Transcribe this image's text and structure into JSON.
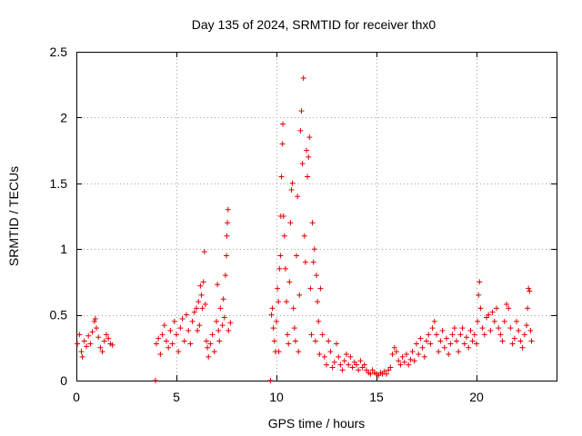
{
  "chart_data": {
    "type": "scatter",
    "title": "Day 135 of 2024, SRMTID for receiver thx0",
    "xlabel": "GPS time / hours",
    "ylabel": "SRMTID / TECUs",
    "xlim": [
      0,
      24
    ],
    "ylim": [
      0,
      2.5
    ],
    "x_ticks": [
      0,
      5,
      10,
      15,
      20
    ],
    "x_tick_labels": [
      "0",
      "5",
      "10",
      "15",
      "20"
    ],
    "y_ticks": [
      0,
      0.5,
      1,
      1.5,
      2,
      2.5
    ],
    "y_tick_labels": [
      "0",
      "0.5",
      "1",
      "1.5",
      "2",
      "2.5"
    ],
    "grid": true,
    "marker": "+",
    "series": [
      {
        "name": "SRMTID",
        "color": "#e00000",
        "points": [
          [
            0.05,
            0.28
          ],
          [
            0.15,
            0.35
          ],
          [
            0.25,
            0.22
          ],
          [
            0.3,
            0.18
          ],
          [
            0.4,
            0.3
          ],
          [
            0.5,
            0.26
          ],
          [
            0.6,
            0.34
          ],
          [
            0.7,
            0.28
          ],
          [
            0.8,
            0.37
          ],
          [
            0.9,
            0.45
          ],
          [
            0.95,
            0.47
          ],
          [
            1.0,
            0.4
          ],
          [
            1.1,
            0.33
          ],
          [
            1.2,
            0.25
          ],
          [
            1.3,
            0.22
          ],
          [
            1.4,
            0.3
          ],
          [
            1.5,
            0.35
          ],
          [
            1.6,
            0.32
          ],
          [
            1.7,
            0.28
          ],
          [
            1.8,
            0.27
          ],
          [
            3.95,
            0.0
          ],
          [
            4.0,
            0.28
          ],
          [
            4.1,
            0.32
          ],
          [
            4.2,
            0.2
          ],
          [
            4.3,
            0.35
          ],
          [
            4.4,
            0.42
          ],
          [
            4.5,
            0.3
          ],
          [
            4.6,
            0.25
          ],
          [
            4.7,
            0.38
          ],
          [
            4.8,
            0.28
          ],
          [
            4.9,
            0.45
          ],
          [
            5.0,
            0.35
          ],
          [
            5.1,
            0.22
          ],
          [
            5.2,
            0.4
          ],
          [
            5.3,
            0.47
          ],
          [
            5.4,
            0.3
          ],
          [
            5.5,
            0.5
          ],
          [
            5.6,
            0.38
          ],
          [
            5.7,
            0.28
          ],
          [
            5.8,
            0.45
          ],
          [
            5.9,
            0.52
          ],
          [
            6.0,
            0.55
          ],
          [
            6.05,
            0.38
          ],
          [
            6.1,
            0.6
          ],
          [
            6.15,
            0.42
          ],
          [
            6.2,
            0.72
          ],
          [
            6.25,
            0.65
          ],
          [
            6.3,
            0.55
          ],
          [
            6.35,
            0.75
          ],
          [
            6.4,
            0.98
          ],
          [
            6.45,
            0.58
          ],
          [
            6.5,
            0.3
          ],
          [
            6.55,
            0.25
          ],
          [
            6.6,
            0.18
          ],
          [
            6.7,
            0.28
          ],
          [
            6.8,
            0.35
          ],
          [
            6.9,
            0.22
          ],
          [
            7.0,
            0.45
          ],
          [
            7.05,
            0.73
          ],
          [
            7.1,
            0.38
          ],
          [
            7.15,
            0.3
          ],
          [
            7.2,
            0.55
          ],
          [
            7.3,
            0.42
          ],
          [
            7.35,
            0.62
          ],
          [
            7.4,
            0.48
          ],
          [
            7.45,
            0.8
          ],
          [
            7.5,
            0.95
          ],
          [
            7.52,
            1.1
          ],
          [
            7.55,
            1.2
          ],
          [
            7.58,
            1.3
          ],
          [
            7.6,
            0.38
          ],
          [
            7.7,
            0.44
          ],
          [
            9.7,
            0.0
          ],
          [
            9.75,
            0.5
          ],
          [
            9.8,
            0.55
          ],
          [
            9.85,
            0.4
          ],
          [
            9.9,
            0.3
          ],
          [
            9.95,
            0.22
          ],
          [
            10.0,
            0.45
          ],
          [
            10.05,
            0.7
          ],
          [
            10.1,
            0.6
          ],
          [
            10.12,
            0.22
          ],
          [
            10.15,
            0.85
          ],
          [
            10.2,
            0.95
          ],
          [
            10.22,
            1.25
          ],
          [
            10.25,
            1.55
          ],
          [
            10.3,
            1.8
          ],
          [
            10.32,
            1.95
          ],
          [
            10.35,
            1.25
          ],
          [
            10.4,
            1.1
          ],
          [
            10.45,
            0.85
          ],
          [
            10.5,
            0.6
          ],
          [
            10.55,
            0.35
          ],
          [
            10.6,
            0.28
          ],
          [
            10.65,
            0.75
          ],
          [
            10.7,
            1.2
          ],
          [
            10.75,
            1.45
          ],
          [
            10.8,
            1.5
          ],
          [
            10.85,
            0.55
          ],
          [
            10.9,
            0.4
          ],
          [
            10.95,
            0.3
          ],
          [
            11.0,
            0.95
          ],
          [
            11.05,
            1.4
          ],
          [
            11.1,
            0.22
          ],
          [
            11.15,
            0.65
          ],
          [
            11.2,
            1.9
          ],
          [
            11.25,
            2.05
          ],
          [
            11.3,
            1.65
          ],
          [
            11.35,
            2.3
          ],
          [
            11.4,
            1.1
          ],
          [
            11.45,
            0.9
          ],
          [
            11.5,
            1.75
          ],
          [
            11.55,
            1.55
          ],
          [
            11.6,
            1.7
          ],
          [
            11.65,
            1.85
          ],
          [
            11.7,
            0.7
          ],
          [
            11.75,
            0.35
          ],
          [
            11.8,
            1.2
          ],
          [
            11.85,
            0.9
          ],
          [
            11.9,
            1.0
          ],
          [
            11.95,
            0.3
          ],
          [
            12.0,
            0.8
          ],
          [
            12.05,
            0.6
          ],
          [
            12.1,
            0.45
          ],
          [
            12.15,
            0.2
          ],
          [
            12.2,
            0.7
          ],
          [
            12.3,
            0.35
          ],
          [
            12.4,
            0.18
          ],
          [
            12.5,
            0.12
          ],
          [
            12.6,
            0.3
          ],
          [
            12.7,
            0.22
          ],
          [
            12.8,
            0.1
          ],
          [
            12.9,
            0.14
          ],
          [
            13.0,
            0.28
          ],
          [
            13.1,
            0.18
          ],
          [
            13.2,
            0.12
          ],
          [
            13.3,
            0.08
          ],
          [
            13.4,
            0.15
          ],
          [
            13.5,
            0.2
          ],
          [
            13.6,
            0.12
          ],
          [
            13.7,
            0.18
          ],
          [
            13.8,
            0.1
          ],
          [
            13.9,
            0.14
          ],
          [
            14.0,
            0.12
          ],
          [
            14.1,
            0.08
          ],
          [
            14.2,
            0.15
          ],
          [
            14.3,
            0.1
          ],
          [
            14.4,
            0.12
          ],
          [
            14.5,
            0.08
          ],
          [
            14.6,
            0.06
          ],
          [
            14.7,
            0.05
          ],
          [
            14.8,
            0.08
          ],
          [
            14.9,
            0.06
          ],
          [
            15.0,
            0.05
          ],
          [
            15.1,
            0.04
          ],
          [
            15.2,
            0.06
          ],
          [
            15.3,
            0.05
          ],
          [
            15.4,
            0.07
          ],
          [
            15.5,
            0.05
          ],
          [
            15.6,
            0.08
          ],
          [
            15.7,
            0.1
          ],
          [
            15.8,
            0.2
          ],
          [
            15.9,
            0.25
          ],
          [
            16.0,
            0.22
          ],
          [
            16.1,
            0.15
          ],
          [
            16.2,
            0.12
          ],
          [
            16.3,
            0.18
          ],
          [
            16.4,
            0.14
          ],
          [
            16.5,
            0.2
          ],
          [
            16.6,
            0.12
          ],
          [
            16.7,
            0.16
          ],
          [
            16.8,
            0.22
          ],
          [
            16.9,
            0.15
          ],
          [
            17.0,
            0.28
          ],
          [
            17.1,
            0.2
          ],
          [
            17.2,
            0.32
          ],
          [
            17.3,
            0.25
          ],
          [
            17.4,
            0.18
          ],
          [
            17.5,
            0.3
          ],
          [
            17.6,
            0.35
          ],
          [
            17.7,
            0.28
          ],
          [
            17.8,
            0.4
          ],
          [
            17.9,
            0.45
          ],
          [
            18.0,
            0.35
          ],
          [
            18.1,
            0.22
          ],
          [
            18.2,
            0.3
          ],
          [
            18.3,
            0.38
          ],
          [
            18.4,
            0.25
          ],
          [
            18.5,
            0.32
          ],
          [
            18.6,
            0.2
          ],
          [
            18.7,
            0.28
          ],
          [
            18.8,
            0.35
          ],
          [
            18.9,
            0.4
          ],
          [
            19.0,
            0.3
          ],
          [
            19.1,
            0.22
          ],
          [
            19.2,
            0.35
          ],
          [
            19.3,
            0.4
          ],
          [
            19.4,
            0.28
          ],
          [
            19.5,
            0.33
          ],
          [
            19.6,
            0.25
          ],
          [
            19.7,
            0.38
          ],
          [
            19.8,
            0.3
          ],
          [
            19.9,
            0.35
          ],
          [
            20.0,
            0.28
          ],
          [
            20.05,
            0.45
          ],
          [
            20.1,
            0.65
          ],
          [
            20.15,
            0.75
          ],
          [
            20.2,
            0.55
          ],
          [
            20.3,
            0.4
          ],
          [
            20.4,
            0.35
          ],
          [
            20.5,
            0.48
          ],
          [
            20.6,
            0.5
          ],
          [
            20.7,
            0.38
          ],
          [
            20.8,
            0.52
          ],
          [
            20.9,
            0.45
          ],
          [
            21.0,
            0.55
          ],
          [
            21.1,
            0.4
          ],
          [
            21.2,
            0.35
          ],
          [
            21.3,
            0.3
          ],
          [
            21.4,
            0.45
          ],
          [
            21.5,
            0.58
          ],
          [
            21.6,
            0.55
          ],
          [
            21.7,
            0.4
          ],
          [
            21.8,
            0.28
          ],
          [
            21.9,
            0.32
          ],
          [
            22.0,
            0.45
          ],
          [
            22.1,
            0.38
          ],
          [
            22.2,
            0.3
          ],
          [
            22.3,
            0.25
          ],
          [
            22.4,
            0.35
          ],
          [
            22.5,
            0.42
          ],
          [
            22.55,
            0.55
          ],
          [
            22.6,
            0.7
          ],
          [
            22.65,
            0.68
          ],
          [
            22.7,
            0.38
          ],
          [
            22.75,
            0.3
          ]
        ]
      }
    ]
  }
}
